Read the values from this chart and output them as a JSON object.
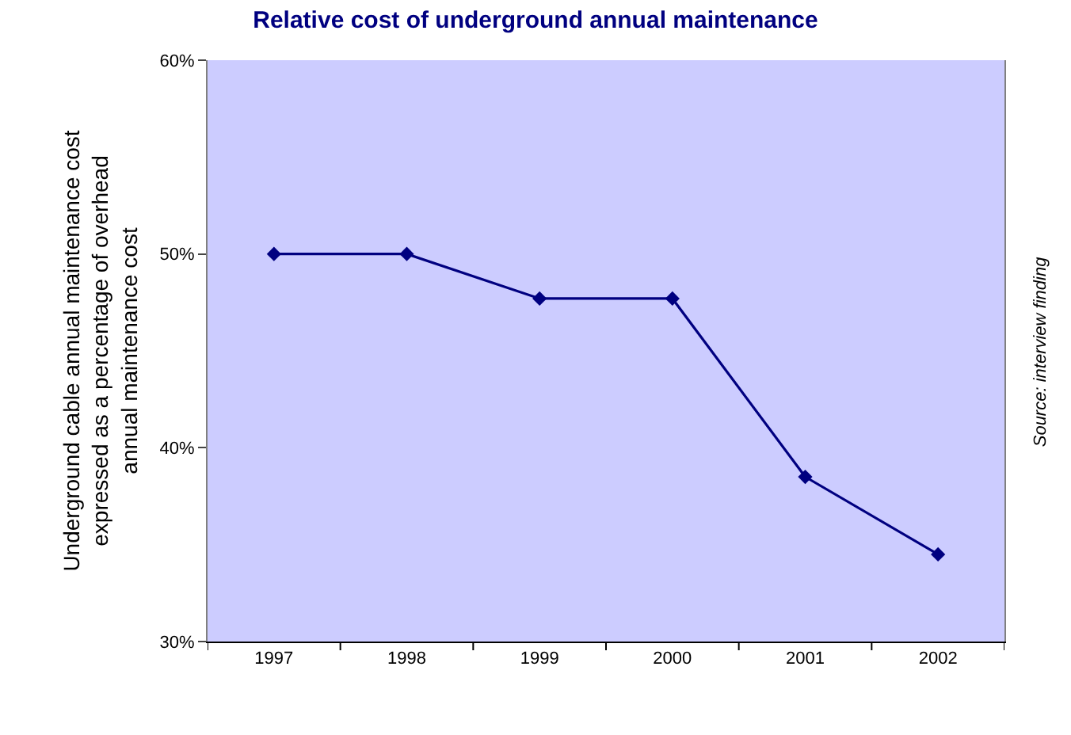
{
  "chart_data": {
    "type": "line",
    "title": "Relative cost of underground annual maintenance",
    "ylabel": "Underground cable annual maintenance cost expressed as a percentage of overhead annual maintenance cost",
    "categories": [
      "1997",
      "1998",
      "1999",
      "2000",
      "2001",
      "2002"
    ],
    "series": [
      {
        "color": "#000080",
        "values": [
          50,
          50,
          47.7,
          47.7,
          38.5,
          34.5
        ]
      }
    ],
    "ylim": [
      30,
      60
    ],
    "yticks": [
      {
        "value": 30,
        "label": "30%"
      },
      {
        "value": 40,
        "label": "40%"
      },
      {
        "value": 50,
        "label": "50%"
      },
      {
        "value": 60,
        "label": "60%"
      }
    ],
    "grid": false,
    "legend": false,
    "marker": "diamond",
    "line_style": "solid",
    "annotations": [
      "Source: interview finding"
    ]
  }
}
